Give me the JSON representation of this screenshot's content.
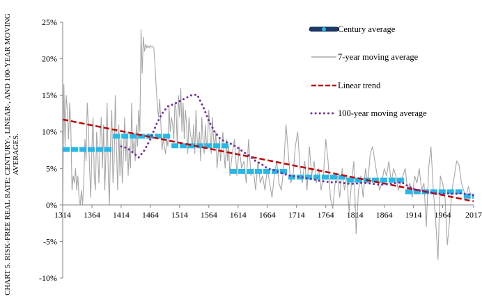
{
  "chart_data": {
    "type": "line",
    "title_lines": [
      "CHART 5. RISK-FREE REAL RATE: CENTURY-, LINEAR-, AND 100-YEAR MOVING",
      "AVERAGES."
    ],
    "xlabel": "",
    "ylabel": "",
    "xlim": [
      1314,
      2017
    ],
    "ylim": [
      -10,
      25
    ],
    "x_ticks": [
      1314,
      1364,
      1414,
      1464,
      1514,
      1564,
      1614,
      1664,
      1714,
      1764,
      1814,
      1864,
      1914,
      1964,
      2017
    ],
    "x_tick_labels": [
      "1314",
      "1364",
      "1414",
      "1464",
      "1514",
      "1564",
      "1614",
      "1664",
      "1714",
      "1764",
      "1814",
      "1864",
      "1914",
      "1964",
      "2017"
    ],
    "y_ticks": [
      -10,
      -5,
      0,
      5,
      10,
      15,
      20,
      25
    ],
    "y_tick_labels": [
      "-10%",
      "-5%",
      "0%",
      "5%",
      "10%",
      "15%",
      "20%",
      "25%"
    ],
    "grid": false,
    "legend_position": "top-right",
    "series": [
      {
        "name": "Century average",
        "color": "#27b7e8",
        "style": "thick-dashed",
        "segments": [
          {
            "x0": 1314,
            "x1": 1400,
            "y": 7.6
          },
          {
            "x0": 1400,
            "x1": 1500,
            "y": 9.4
          },
          {
            "x0": 1500,
            "x1": 1600,
            "y": 8.1
          },
          {
            "x0": 1600,
            "x1": 1700,
            "y": 4.6
          },
          {
            "x0": 1700,
            "x1": 1800,
            "y": 3.8
          },
          {
            "x0": 1800,
            "x1": 1900,
            "y": 3.4
          },
          {
            "x0": 1900,
            "x1": 2000,
            "y": 1.8
          },
          {
            "x0": 2000,
            "x1": 2017,
            "y": 1.2
          }
        ]
      },
      {
        "name": "7-year moving average",
        "color": "#a6a6a6",
        "style": "thin",
        "x": [
          1314,
          1316,
          1318,
          1320,
          1322,
          1324,
          1326,
          1328,
          1330,
          1332,
          1334,
          1336,
          1338,
          1340,
          1342,
          1344,
          1346,
          1348,
          1350,
          1352,
          1354,
          1356,
          1358,
          1360,
          1362,
          1364,
          1366,
          1368,
          1370,
          1372,
          1374,
          1376,
          1378,
          1380,
          1382,
          1384,
          1386,
          1388,
          1390,
          1392,
          1394,
          1396,
          1398,
          1400,
          1402,
          1404,
          1406,
          1408,
          1410,
          1412,
          1414,
          1416,
          1418,
          1420,
          1422,
          1424,
          1426,
          1428,
          1430,
          1432,
          1434,
          1436,
          1438,
          1440,
          1442,
          1444,
          1446,
          1448,
          1450,
          1452,
          1454,
          1456,
          1458,
          1460,
          1462,
          1464,
          1466,
          1468,
          1470,
          1472,
          1474,
          1476,
          1478,
          1480,
          1482,
          1484,
          1486,
          1488,
          1490,
          1492,
          1494,
          1496,
          1498,
          1500,
          1502,
          1504,
          1506,
          1508,
          1510,
          1512,
          1514,
          1516,
          1518,
          1520,
          1522,
          1524,
          1526,
          1528,
          1530,
          1532,
          1534,
          1536,
          1538,
          1540,
          1542,
          1544,
          1546,
          1548,
          1550,
          1552,
          1554,
          1556,
          1558,
          1560,
          1562,
          1564,
          1566,
          1568,
          1570,
          1572,
          1574,
          1576,
          1578,
          1580,
          1582,
          1584,
          1586,
          1588,
          1590,
          1592,
          1594,
          1596,
          1598,
          1600,
          1604,
          1608,
          1612,
          1616,
          1620,
          1624,
          1628,
          1632,
          1636,
          1640,
          1644,
          1648,
          1652,
          1656,
          1660,
          1664,
          1668,
          1672,
          1676,
          1680,
          1684,
          1688,
          1692,
          1696,
          1700,
          1704,
          1708,
          1712,
          1716,
          1720,
          1724,
          1728,
          1732,
          1736,
          1740,
          1744,
          1748,
          1752,
          1756,
          1760,
          1764,
          1768,
          1772,
          1776,
          1780,
          1784,
          1788,
          1792,
          1796,
          1800,
          1804,
          1808,
          1812,
          1816,
          1820,
          1824,
          1828,
          1832,
          1836,
          1840,
          1844,
          1848,
          1852,
          1856,
          1860,
          1864,
          1868,
          1872,
          1876,
          1880,
          1884,
          1888,
          1892,
          1896,
          1900,
          1904,
          1908,
          1912,
          1916,
          1920,
          1924,
          1928,
          1932,
          1936,
          1940,
          1944,
          1948,
          1952,
          1956,
          1960,
          1964,
          1968,
          1972,
          1976,
          1980,
          1984,
          1988,
          1992,
          1996,
          2000,
          2004,
          2008,
          2012,
          2017
        ],
        "values": [
          0,
          16.5,
          8,
          15,
          13,
          9,
          14,
          10.5,
          2,
          4,
          3,
          5,
          2,
          4,
          1,
          0,
          2,
          0,
          3,
          9,
          6,
          14,
          11,
          5,
          1,
          8,
          12,
          4,
          2,
          10,
          7,
          3,
          9,
          12,
          5,
          11,
          2,
          7,
          14,
          4,
          0,
          9,
          13,
          3,
          6,
          15,
          8,
          2,
          11,
          4,
          9,
          3,
          7,
          12,
          6,
          10,
          4,
          8,
          5,
          14,
          7,
          9,
          6,
          11,
          8,
          13,
          10,
          24,
          18,
          23,
          21,
          22,
          21.5,
          21.8,
          21.5,
          21.8,
          21.6,
          21.7,
          21.5,
          19,
          16,
          13.5,
          12,
          14.5,
          11,
          7.5,
          9,
          8,
          7,
          9,
          8,
          13.5,
          10,
          12,
          11,
          9,
          14,
          13,
          8,
          15,
          12,
          16,
          10,
          14,
          9,
          13,
          11,
          7,
          12,
          10,
          9,
          8,
          11,
          7,
          13,
          9,
          8,
          10,
          6,
          12,
          9,
          7,
          11,
          8,
          9,
          13,
          10,
          7,
          12,
          9,
          8,
          10,
          5,
          7,
          9,
          6,
          8,
          10,
          7,
          5,
          9,
          6,
          8,
          4,
          7,
          9,
          4,
          8,
          5,
          6,
          3,
          9,
          4,
          5,
          2,
          6,
          3,
          4,
          2,
          5,
          3,
          1,
          4,
          6,
          3,
          2,
          5,
          11,
          7,
          3,
          4,
          8,
          10,
          5,
          3,
          6,
          2,
          8,
          4,
          6,
          3,
          5,
          2,
          4,
          9,
          6,
          1,
          -0.5,
          3,
          4,
          1,
          5,
          2,
          4,
          -1,
          3,
          6,
          -4,
          2,
          4,
          1,
          5,
          3,
          7,
          8,
          6,
          4,
          2,
          3,
          5,
          4,
          6,
          3,
          5,
          4,
          2,
          3,
          4,
          5,
          2,
          3,
          1,
          4,
          3,
          5,
          2,
          3,
          -3,
          5,
          8,
          2,
          -2,
          -7.5,
          4,
          3,
          1,
          -5.5,
          -2,
          2,
          4,
          6,
          5.5,
          3,
          2,
          1,
          2.5,
          1.5,
          1.2
        ],
        "values_note_removed": true
      },
      {
        "name": "Linear trend",
        "color": "#c00000",
        "style": "dashed",
        "x": [
          1314,
          2017
        ],
        "values": [
          11.7,
          0.5
        ]
      },
      {
        "name": "100-year moving average",
        "color": "#7030a0",
        "style": "dotted",
        "x": [
          1414,
          1424,
          1434,
          1444,
          1454,
          1464,
          1474,
          1484,
          1494,
          1504,
          1514,
          1524,
          1534,
          1544,
          1554,
          1564,
          1574,
          1584,
          1594,
          1604,
          1614,
          1624,
          1634,
          1644,
          1654,
          1664,
          1674,
          1684,
          1694,
          1704,
          1714,
          1724,
          1734,
          1744,
          1754,
          1764,
          1774,
          1784,
          1794,
          1804,
          1814,
          1824,
          1834,
          1844,
          1854,
          1864,
          1874,
          1884,
          1894,
          1904,
          1914,
          1924,
          1934,
          1944,
          1954,
          1964,
          1974,
          1984,
          1994,
          2004,
          2014,
          2017
        ],
        "values": [
          8,
          7.8,
          7.2,
          6.5,
          7.5,
          9,
          11,
          12.5,
          13.5,
          13.8,
          14.2,
          14.6,
          15,
          15.1,
          13.5,
          11.5,
          10,
          9,
          8.6,
          8.3,
          7.8,
          7.2,
          6.7,
          6,
          5.6,
          5,
          4.8,
          4.5,
          4.2,
          4,
          3.9,
          3.8,
          3.6,
          3.5,
          3.3,
          3.2,
          3.1,
          3.2,
          3,
          2.9,
          2.9,
          3,
          3,
          2.9,
          2.8,
          2.8,
          2.9,
          3,
          3.1,
          2.6,
          2.2,
          2,
          1.9,
          1.7,
          1.6,
          1.5,
          1.6,
          1.5,
          1.6,
          1.5,
          1.4,
          1.3
        ]
      }
    ]
  }
}
